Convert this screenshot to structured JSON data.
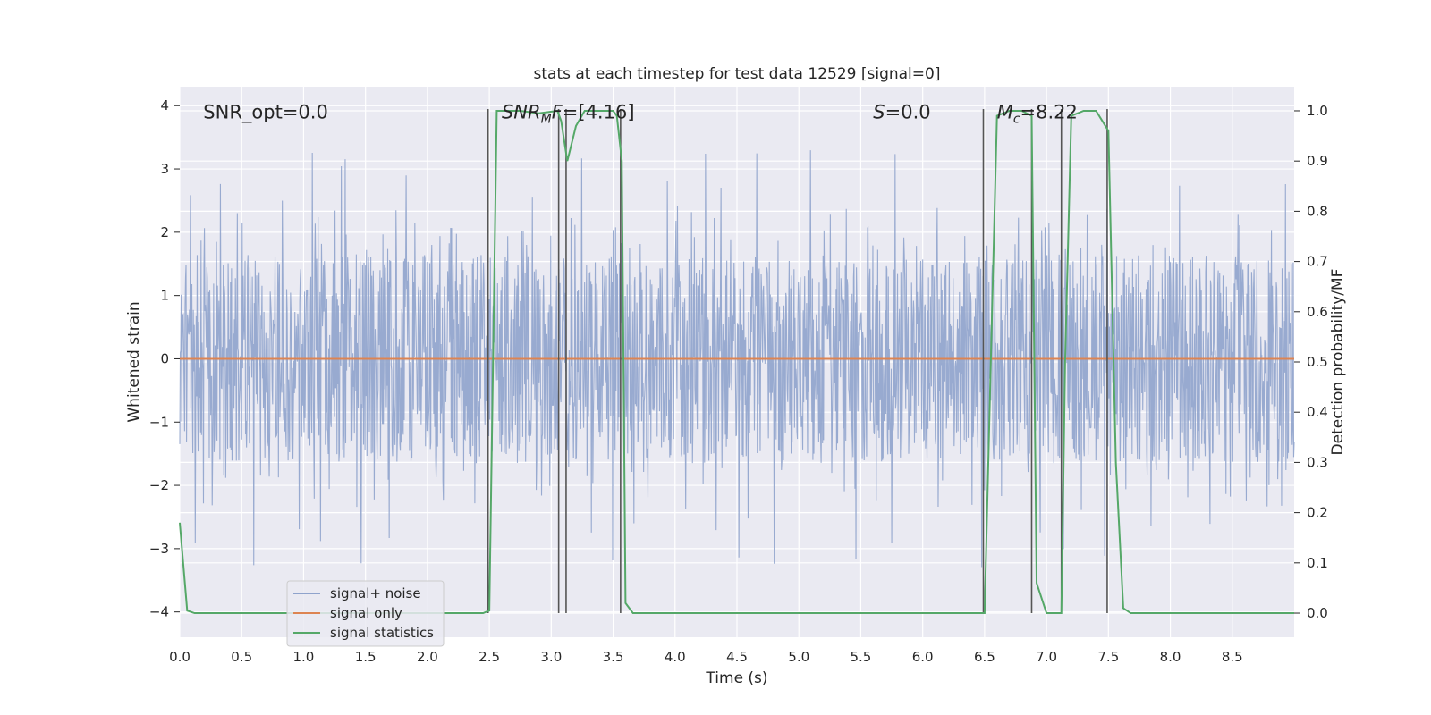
{
  "chart_data": {
    "type": "line",
    "title": "stats at each timestep for test data 12529 [signal=0]",
    "xlabel": "Time (s)",
    "ylabel_left": "Whitened strain",
    "ylabel_right": "Detection probability/MF",
    "xlim": [
      0,
      9
    ],
    "ylim_left": [
      -4.4,
      4.3
    ],
    "ylim_right": [
      -0.048,
      1.048
    ],
    "x_ticks": [
      0,
      0.5,
      1,
      1.5,
      2,
      2.5,
      3,
      3.5,
      4,
      4.5,
      5,
      5.5,
      6,
      6.5,
      7,
      7.5,
      8,
      8.5
    ],
    "x_tick_labels": [
      "0.0",
      "0.5",
      "1.0",
      "1.5",
      "2.0",
      "2.5",
      "3.0",
      "3.5",
      "4.0",
      "4.5",
      "5.0",
      "5.5",
      "6.0",
      "6.5",
      "7.0",
      "7.5",
      "8.0",
      "8.5"
    ],
    "y_ticks_left": [
      4,
      3,
      2,
      1,
      0,
      -1,
      -2,
      -3,
      -4
    ],
    "y_tick_labels_left": [
      "4",
      "3",
      "2",
      "1",
      "0",
      "−1",
      "−2",
      "−3",
      "−4"
    ],
    "y_ticks_right": [
      1.0,
      0.9,
      0.8,
      0.7,
      0.6,
      0.5,
      0.4,
      0.3,
      0.2,
      0.1,
      0.0
    ],
    "y_tick_labels_right": [
      "1.0",
      "0.9",
      "0.8",
      "0.7",
      "0.6",
      "0.5",
      "0.4",
      "0.3",
      "0.2",
      "0.1",
      "0.0"
    ],
    "grid": true,
    "legend_placement": "lower-left",
    "annotations": [
      {
        "label": "SNR_opt=0.0",
        "x": 0.19,
        "y": 3.9
      },
      {
        "label": "SNR_MF=[4.16]",
        "x": 2.6,
        "y": 3.9
      },
      {
        "label": "S=0.0",
        "x": 5.6,
        "y": 3.9
      },
      {
        "label": "M_c=8.22",
        "x": 6.6,
        "y": 3.9
      }
    ],
    "noise_envelope": {
      "typical_abs": 1.65,
      "peak_max": 3.52,
      "peak_min": -4.0,
      "sample_rate_hz": 256
    },
    "series": [
      {
        "name": "signal+ noise",
        "axis": "left",
        "color": "#8fa3cc",
        "kind": "noise"
      },
      {
        "name": "signal only",
        "axis": "left",
        "color": "#dd8452",
        "x": [
          0,
          9
        ],
        "y": [
          0,
          0
        ]
      },
      {
        "name": "signal statistics",
        "axis": "right",
        "color": "#55a868",
        "x": [
          0,
          0.06,
          0.12,
          2.45,
          2.5,
          2.56,
          2.63,
          2.75,
          2.9,
          3.05,
          3.08,
          3.13,
          3.2,
          3.27,
          3.38,
          3.5,
          3.53,
          3.57,
          3.6,
          3.66,
          3.72,
          6.5,
          6.55,
          6.6,
          6.7,
          6.8,
          6.88,
          6.92,
          7.0,
          7.12,
          7.15,
          7.2,
          7.3,
          7.4,
          7.5,
          7.56,
          7.62,
          7.68,
          7.75,
          9
        ],
        "y": [
          0.18,
          0.005,
          0,
          0,
          0.005,
          1.0,
          1.0,
          1.0,
          0.995,
          1.0,
          0.98,
          0.9,
          0.97,
          1.0,
          1.0,
          1.0,
          0.99,
          0.9,
          0.02,
          0,
          0,
          0,
          0.5,
          0.99,
          1.0,
          1.0,
          0.99,
          0.06,
          0,
          0,
          0.5,
          0.99,
          1.0,
          1.0,
          0.96,
          0.3,
          0.01,
          0,
          0,
          0
        ]
      }
    ],
    "event_markers": {
      "color": "#555555",
      "x": [
        2.49,
        3.06,
        3.12,
        3.56,
        6.49,
        6.88,
        7.12,
        7.49
      ]
    }
  }
}
